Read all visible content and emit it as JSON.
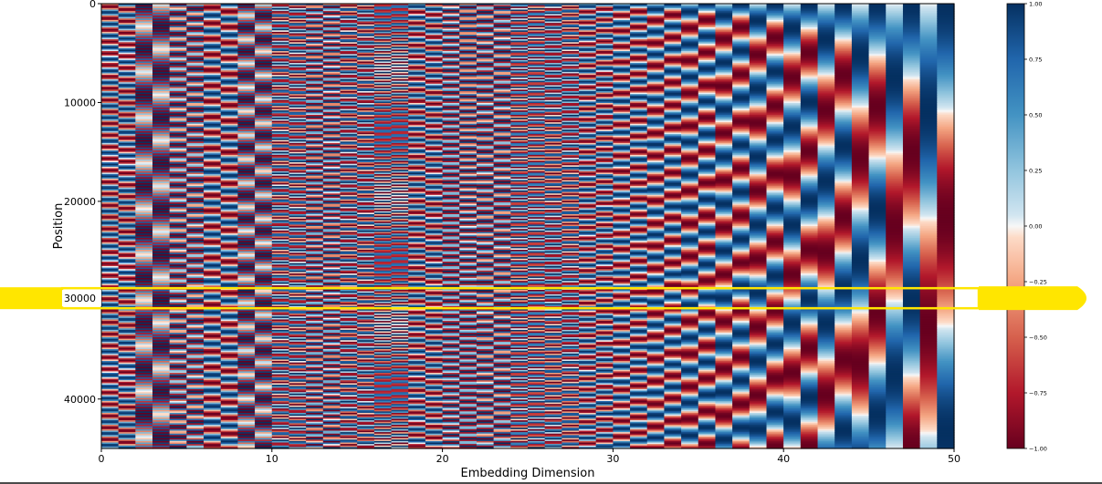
{
  "chart_data": {
    "type": "heatmap",
    "title": "",
    "xlabel": "Embedding Dimension",
    "ylabel": "Position",
    "x_range": [
      0,
      50
    ],
    "y_range": [
      0,
      45000
    ],
    "y_inverted": true,
    "x_ticks": [
      "0",
      "10",
      "20",
      "30",
      "40",
      "50"
    ],
    "y_ticks": [
      "0",
      "10000",
      "20000",
      "30000",
      "40000"
    ],
    "colormap": "RdBu",
    "value_range": [
      -1.0,
      1.0
    ],
    "colorbar_ticks": [
      "1.00",
      "0.75",
      "0.50",
      "0.25",
      "0.00",
      "−0.25",
      "−0.50",
      "−0.75",
      "−1.00"
    ],
    "encoding": "sinusoidal positional encoding: even dimensions sin, odd dimensions cos, frequency 1/10000^(2i/d_model), d_model 50",
    "d_model": 50,
    "highlight": {
      "y_center": 29800,
      "color": "#ffe600"
    }
  },
  "colors": {
    "low": "#67001f",
    "mid": "#f7f7f7",
    "high": "#053061",
    "highlight": "#ffe600"
  }
}
